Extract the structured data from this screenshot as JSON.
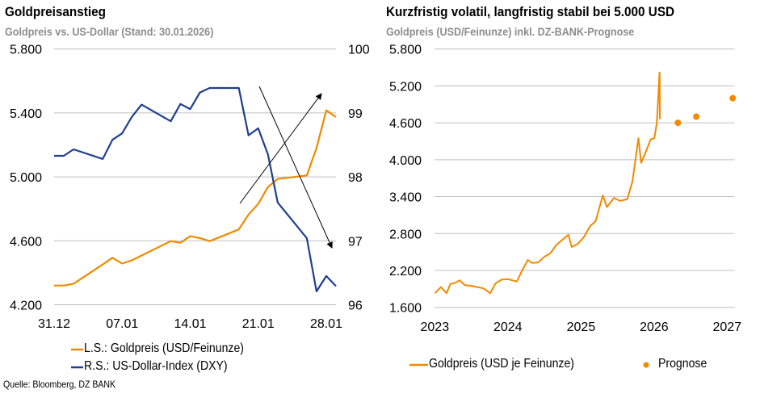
{
  "colors": {
    "gold": "#F18A00",
    "dxy": "#1F3F8F",
    "grid": "#BFBFBF",
    "subtitle": "#8C8C8C",
    "arrow": "#000000"
  },
  "left": {
    "title": "Goldpreisanstieg",
    "subtitle": "Goldpreis vs. US-Dollar (Stand: 30.01.2026)",
    "legend": [
      "L.S.: Goldpreis (USD/Feinunze)",
      "R.S.: US-Dollar-Index (DXY)"
    ],
    "source": "Quelle: Bloomberg, DZ BANK"
  },
  "right": {
    "title": "Kurzfristig volatil, langfristig stabil bei 5.000 USD",
    "subtitle": "Goldpreis (USD/Feinunze) inkl. DZ-BANK-Prognose",
    "legend": [
      "Goldpreis (USD je Feinunze)",
      "Prognose"
    ]
  },
  "chart_data": [
    {
      "type": "line",
      "dual_axis": true,
      "x_range": [
        "2025-12-31",
        "2026-01-29"
      ],
      "x_ticks": [
        {
          "date": "2025-12-31",
          "label": "31.12"
        },
        {
          "date": "2026-01-07",
          "label": "07.01"
        },
        {
          "date": "2026-01-14",
          "label": "14.01"
        },
        {
          "date": "2026-01-21",
          "label": "21.01"
        },
        {
          "date": "2026-01-28",
          "label": "28.01"
        }
      ],
      "y_left": {
        "range": [
          4200,
          5800
        ],
        "ticks": [
          "4.200",
          "4.600",
          "5.000",
          "5.400",
          "5.800"
        ],
        "tick_values": [
          4200,
          4600,
          5000,
          5400,
          5800
        ]
      },
      "y_right": {
        "range": [
          96,
          100
        ],
        "ticks": [
          "96",
          "97",
          "98",
          "99",
          "100"
        ],
        "tick_values": [
          96,
          97,
          98,
          99,
          100
        ]
      },
      "grid": "horizontal",
      "legend_placement": "bottom",
      "annotations": [
        "arrow-up (gold rising)",
        "arrow-down (dollar falling)"
      ],
      "series": [
        {
          "name": "L.S.: Goldpreis (USD/Feinunze)",
          "axis": "left",
          "color": "#F18A00",
          "x": [
            "2025-12-31",
            "2026-01-01",
            "2026-01-02",
            "2026-01-05",
            "2026-01-06",
            "2026-01-07",
            "2026-01-08",
            "2026-01-09",
            "2026-01-12",
            "2026-01-13",
            "2026-01-14",
            "2026-01-15",
            "2026-01-16",
            "2026-01-19",
            "2026-01-20",
            "2026-01-21",
            "2026-01-22",
            "2026-01-23",
            "2026-01-26",
            "2026-01-27",
            "2026-01-28",
            "2026-01-29"
          ],
          "values": [
            4320,
            4320,
            4332,
            4452,
            4494,
            4458,
            4478,
            4508,
            4598,
            4588,
            4629,
            4617,
            4598,
            4671,
            4764,
            4831,
            4937,
            4987,
            5009,
            5181,
            5416,
            5374
          ]
        },
        {
          "name": "R.S.: US-Dollar-Index (DXY)",
          "axis": "right",
          "color": "#1F3F8F",
          "x": [
            "2025-12-31",
            "2026-01-01",
            "2026-01-02",
            "2026-01-05",
            "2026-01-06",
            "2026-01-07",
            "2026-01-08",
            "2026-01-09",
            "2026-01-12",
            "2026-01-13",
            "2026-01-14",
            "2026-01-15",
            "2026-01-16",
            "2026-01-19",
            "2026-01-20",
            "2026-01-21",
            "2026-01-22",
            "2026-01-23",
            "2026-01-26",
            "2026-01-27",
            "2026-01-28",
            "2026-01-29"
          ],
          "values": [
            98.33,
            98.33,
            98.43,
            98.28,
            98.58,
            98.68,
            98.94,
            99.13,
            98.87,
            99.14,
            99.06,
            99.32,
            99.39,
            99.39,
            98.65,
            98.76,
            98.35,
            97.6,
            97.04,
            96.21,
            96.45,
            96.29
          ]
        }
      ]
    },
    {
      "type": "line",
      "x_range": [
        "2023-01-01",
        "2027-01-31"
      ],
      "x_ticks": [
        {
          "date": "2023-01-01",
          "label": "2023"
        },
        {
          "date": "2024-01-01",
          "label": "2024"
        },
        {
          "date": "2025-01-01",
          "label": "2025"
        },
        {
          "date": "2026-01-01",
          "label": "2026"
        },
        {
          "date": "2027-01-01",
          "label": "2027"
        }
      ],
      "y": {
        "range": [
          1600,
          5800
        ],
        "ticks": [
          "1.600",
          "2.200",
          "2.800",
          "3.400",
          "4.000",
          "4.600",
          "5.200",
          "5.800"
        ],
        "tick_values": [
          1600,
          2200,
          2800,
          3400,
          4000,
          4600,
          5200,
          5800
        ]
      },
      "grid": "horizontal",
      "legend_placement": "bottom",
      "series": [
        {
          "name": "Goldpreis (USD je Feinunze)",
          "style": "line",
          "color": "#F18A00",
          "x": [
            "2023-01-02",
            "2023-02-01",
            "2023-03-01",
            "2023-03-20",
            "2023-04-15",
            "2023-05-05",
            "2023-06-01",
            "2023-07-01",
            "2023-08-01",
            "2023-09-01",
            "2023-10-05",
            "2023-11-01",
            "2023-12-01",
            "2024-01-01",
            "2024-02-15",
            "2024-03-10",
            "2024-04-10",
            "2024-05-01",
            "2024-06-01",
            "2024-07-01",
            "2024-08-01",
            "2024-09-01",
            "2024-10-30",
            "2024-11-15",
            "2024-12-15",
            "2025-01-15",
            "2025-02-15",
            "2025-03-15",
            "2025-04-20",
            "2025-05-10",
            "2025-06-15",
            "2025-07-15",
            "2025-08-20",
            "2025-09-15",
            "2025-10-15",
            "2025-10-28",
            "2025-11-15",
            "2025-12-15",
            "2026-01-02",
            "2026-01-15",
            "2026-01-28",
            "2026-01-29",
            "2026-01-30"
          ],
          "values": [
            1830,
            1930,
            1830,
            1980,
            2000,
            2040,
            1960,
            1950,
            1930,
            1910,
            1830,
            1990,
            2050,
            2060,
            2020,
            2180,
            2370,
            2320,
            2330,
            2420,
            2480,
            2620,
            2780,
            2580,
            2630,
            2740,
            2920,
            3000,
            3420,
            3230,
            3380,
            3330,
            3360,
            3650,
            4350,
            3950,
            4080,
            4330,
            4350,
            4600,
            5420,
            5380,
            4660
          ]
        },
        {
          "name": "Prognose",
          "style": "marker",
          "color": "#F18A00",
          "x": [
            "2026-04-30",
            "2026-07-31",
            "2027-01-29"
          ],
          "values": [
            4600,
            4700,
            5000
          ]
        }
      ]
    }
  ]
}
